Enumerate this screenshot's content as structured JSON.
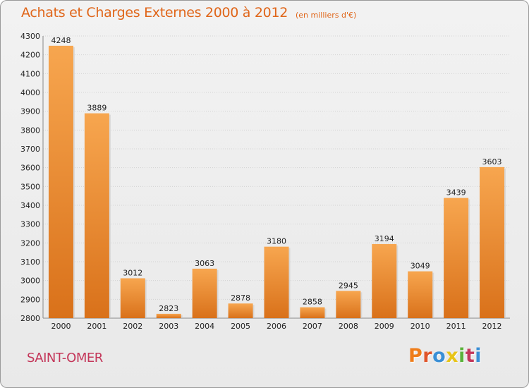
{
  "header": {
    "title": "Achats et Charges Externes 2000 à 2012",
    "subtitle": "(en milliers d'€)"
  },
  "footer": {
    "location": "SAINT-OMER",
    "logo": "Proxiti"
  },
  "colors": {
    "bar_light": "#f7a64f",
    "bar_dark": "#d9711a",
    "title": "#e0661a",
    "location": "#c4375a",
    "logo_letters": [
      "#ef7d1a",
      "#e0552a",
      "#3a8fd6",
      "#e8c417",
      "#5ab23a",
      "#c4375a",
      "#3a8fd6"
    ]
  },
  "chart_data": {
    "type": "bar",
    "title": "Achats et Charges Externes 2000 à 2012",
    "subtitle": "(en milliers d'€)",
    "xlabel": "",
    "ylabel": "",
    "categories": [
      "2000",
      "2001",
      "2002",
      "2003",
      "2004",
      "2005",
      "2006",
      "2007",
      "2008",
      "2009",
      "2010",
      "2011",
      "2012"
    ],
    "values": [
      4248,
      3889,
      3012,
      2823,
      3063,
      2878,
      3180,
      2858,
      2945,
      3194,
      3049,
      3439,
      3603
    ],
    "ylim": [
      2800,
      4300
    ],
    "yticks": [
      2800,
      2900,
      3000,
      3100,
      3200,
      3300,
      3400,
      3500,
      3600,
      3700,
      3800,
      3900,
      4000,
      4100,
      4200,
      4300
    ],
    "grid": true,
    "legend": "none"
  }
}
